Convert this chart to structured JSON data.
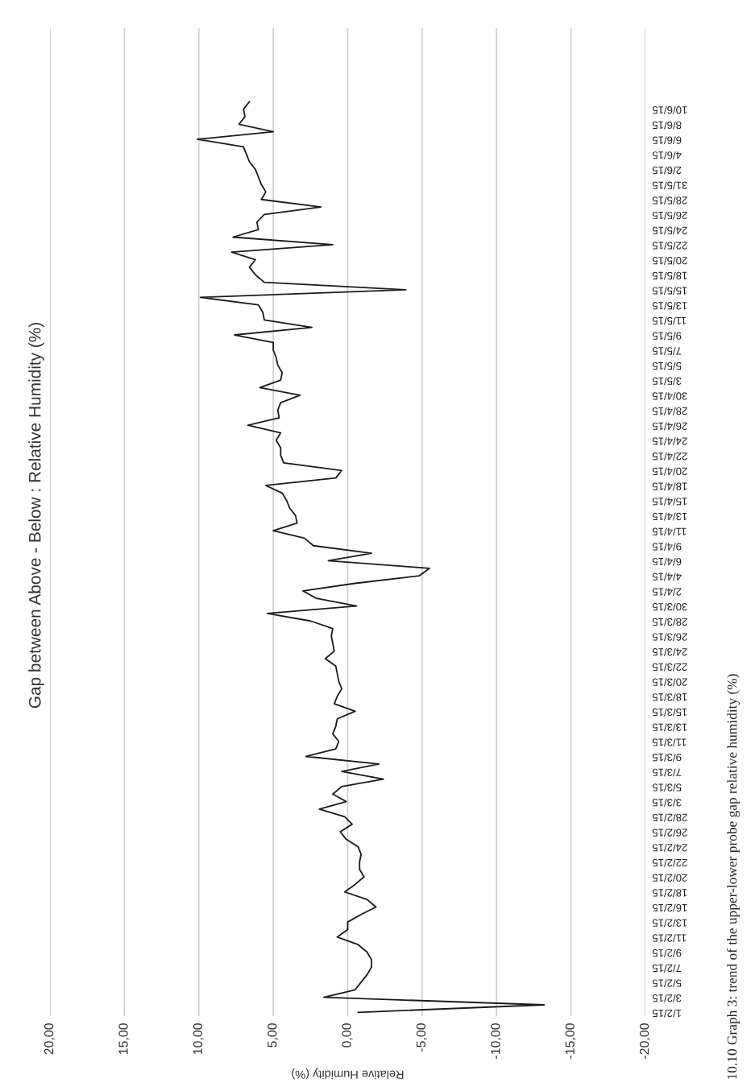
{
  "chart_data": {
    "type": "line",
    "orientation": "horizontal",
    "title": "Gap between Above - Below : Relative Humidity (%)",
    "xlabel": "Relative Humidity (%)",
    "annotations": [
      "10.10 Graph 3: trend of the upper-lower probe gap relative humidity (%)"
    ],
    "categories": [
      null,
      "10/6/15",
      null,
      "8/6/15",
      null,
      "6/6/15",
      null,
      "4/6/15",
      null,
      "2/6/15",
      null,
      "31/5/15",
      null,
      "28/5/15",
      null,
      "26/5/15",
      null,
      "24/5/15",
      null,
      "22/5/15",
      null,
      "20/5/15",
      null,
      "18/5/15",
      null,
      "15/5/15",
      null,
      "13/5/15",
      null,
      "11/5/15",
      null,
      "9/5/15",
      null,
      "7/5/15",
      null,
      "5/5/15",
      null,
      "3/5/15",
      null,
      "30/4/15",
      null,
      "28/4/15",
      null,
      "26/4/15",
      null,
      "24/4/15",
      null,
      "22/4/15",
      null,
      "20/4/15",
      null,
      "18/4/15",
      null,
      "15/4/15",
      null,
      "13/4/15",
      null,
      "11/4/15",
      null,
      "9/4/15",
      null,
      "6/4/15",
      null,
      "4/4/15",
      null,
      "2/4/15",
      null,
      "30/3/15",
      null,
      "28/3/15",
      null,
      "26/3/15",
      null,
      "24/3/15",
      null,
      "22/3/15",
      null,
      "20/3/15",
      null,
      "18/3/15",
      null,
      "15/3/15",
      null,
      "13/3/15",
      null,
      "11/3/15",
      null,
      "9/3/15",
      null,
      "7/3/15",
      null,
      "5/3/15",
      null,
      "3/3/15",
      null,
      "28/2/15",
      null,
      "26/2/15",
      null,
      "24/2/15",
      null,
      "22/2/15",
      null,
      "20/2/15",
      null,
      "18/2/15",
      null,
      "16/2/15",
      null,
      "13/2/15",
      null,
      "11/2/15",
      null,
      "9/2/15",
      null,
      "7/2/15",
      null,
      "5/2/15",
      null,
      "3/2/15",
      null,
      "1/2/15"
    ],
    "series": [
      {
        "color": "#1a1a1a",
        "values": [
          6.6,
          7.0,
          6.9,
          7.3,
          5.0,
          10.1,
          7.0,
          6.8,
          6.6,
          6.2,
          6.0,
          5.8,
          5.5,
          5.8,
          1.8,
          5.6,
          6.1,
          6.0,
          7.7,
          1.0,
          7.8,
          6.2,
          6.6,
          6.2,
          5.6,
          -3.9,
          9.9,
          6.0,
          5.7,
          5.6,
          2.4,
          7.6,
          5.0,
          5.0,
          4.8,
          4.7,
          4.4,
          4.5,
          5.9,
          3.2,
          4.5,
          4.7,
          4.6,
          6.7,
          4.5,
          4.8,
          4.5,
          4.5,
          4.3,
          0.4,
          0.8,
          5.5,
          4.4,
          4.1,
          3.9,
          3.5,
          3.4,
          5.0,
          2.9,
          2.3,
          -1.6,
          1.3,
          -5.5,
          -4.8,
          -0.5,
          3.0,
          2.1,
          -0.6,
          5.4,
          2.5,
          1.0,
          1.1,
          1.0,
          0.9,
          1.5,
          0.8,
          0.7,
          0.6,
          0.4,
          0.7,
          0.9,
          -0.5,
          0.7,
          0.8,
          1.0,
          0.6,
          0.8,
          2.8,
          -2.1,
          0.4,
          -2.4,
          0.4,
          1.0,
          0.1,
          1.9,
          0.2,
          -0.3,
          0.5,
          0.1,
          -0.7,
          -0.9,
          -0.8,
          -0.8,
          -1.1,
          -0.5,
          0.2,
          -1.3,
          -1.9,
          -0.9,
          0,
          0,
          0.7,
          -0.7,
          -1.3,
          -1.6,
          -1.6,
          -1.3,
          -0.9,
          -0.5,
          1.6,
          -13.2,
          -0.7
        ]
      }
    ],
    "xlim": [
      20,
      -20
    ],
    "xticks": [
      {
        "value": 20,
        "label": "20,00"
      },
      {
        "value": 15,
        "label": "15,00"
      },
      {
        "value": 10,
        "label": "10,00"
      },
      {
        "value": 5,
        "label": "5,00"
      },
      {
        "value": 0,
        "label": "0,00"
      },
      {
        "value": -5,
        "label": "-5,00"
      },
      {
        "value": -10,
        "label": "-10,00"
      },
      {
        "value": -15,
        "label": "-15,00"
      },
      {
        "value": -20,
        "label": "-20,00"
      }
    ],
    "grid": "x",
    "legend": false,
    "marker": "none",
    "line_style": "solid"
  }
}
